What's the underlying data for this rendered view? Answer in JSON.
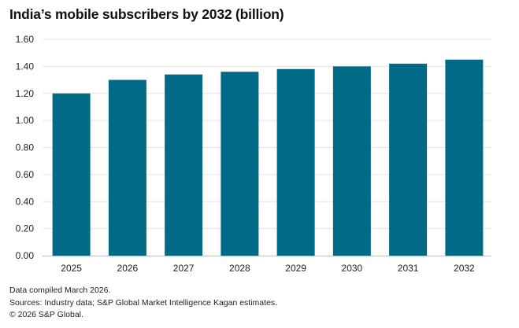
{
  "chart_data": {
    "type": "bar",
    "title": "India’s mobile subscribers by 2032 (billion)",
    "xlabel": "",
    "ylabel": "",
    "categories": [
      "2025",
      "2026",
      "2027",
      "2028",
      "2029",
      "2030",
      "2031",
      "2032"
    ],
    "values": [
      1.2,
      1.3,
      1.34,
      1.36,
      1.38,
      1.4,
      1.42,
      1.45
    ],
    "ylim": [
      0,
      1.6
    ],
    "yticks": [
      "0.00",
      "0.20",
      "0.40",
      "0.60",
      "0.80",
      "1.00",
      "1.20",
      "1.40",
      "1.60"
    ],
    "grid": true,
    "legend": "none",
    "bar_color": "#006a87"
  },
  "footnotes": {
    "compiled": "Data compiled March 2026.",
    "sources": "Sources: Industry data; S&P Global Market Intelligence Kagan estimates.",
    "copyright": "© 2026 S&P Global."
  }
}
